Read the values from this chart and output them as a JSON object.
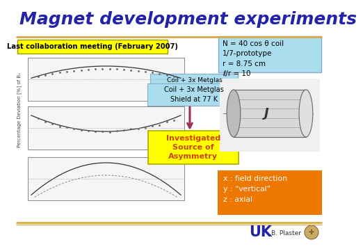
{
  "title": "Magnet development experiments",
  "title_color": "#2222aa",
  "title_fontsize": 18,
  "bg_color": "#ffffff",
  "separator_color": "#ddaa44",
  "top_left_box_text": "Last collaboration meeting (February 2007)",
  "top_left_box_bg": "#ffff00",
  "top_left_box_color": "#000000",
  "top_right_box_text": "N = 40 cos θ coil\n1/7-prototype\nr = 8.75 cm\nℓ/r = 10",
  "top_right_box_bg": "#aaddee",
  "top_right_box_color": "#000000",
  "label_metglas1": "Coil + 3x Metglas",
  "label_metglas2": "Coil + 3x Metglas\nShield at 77 K",
  "metglas_box_bg": "#aaddee",
  "arrow_color": "#993355",
  "investigated_text": "Investigated\nSource of\nAsymmetry",
  "investigated_box_bg": "#ffff00",
  "investigated_box_color": "#cc4400",
  "bottom_right_box_text": "x : field direction\ny : “vertical”\nz : axial",
  "bottom_right_box_bg": "#ee7700",
  "bottom_right_box_color": "#ffffff",
  "ylabel": "Percentage Deviation [%] of Bₓ",
  "footer_color": "#2222aa",
  "footer_text": "UK",
  "footer_sub": "B. Plaster"
}
